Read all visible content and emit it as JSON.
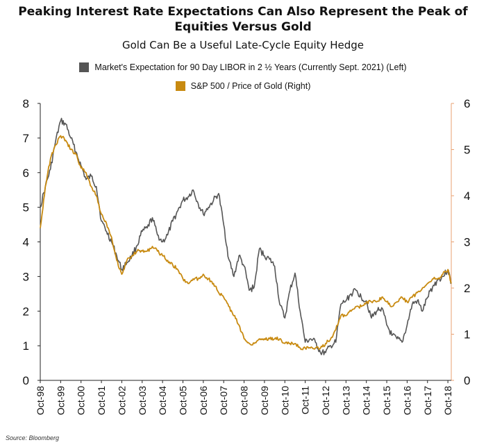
{
  "title_line1": "Peaking Interest Rate Expectations Can Also Represent the Peak of",
  "title_line2": "Equities Versus Gold",
  "subtitle": "Gold Can Be a Useful Late-Cycle Equity Hedge",
  "source": "Source: Bloomberg",
  "colors": {
    "libor": "#555555",
    "ratio": "#c88a10",
    "axis": "#222222"
  },
  "chart_data": {
    "type": "line",
    "title": "Peaking Interest Rate Expectations Can Also Represent the Peak of Equities Versus Gold",
    "subtitle": "Gold Can Be a Useful Late-Cycle Equity Hedge",
    "x_tick_labels": [
      "Oct-98",
      "Oct-99",
      "Oct-00",
      "Oct-01",
      "Oct-02",
      "Oct-03",
      "Oct-04",
      "Oct-05",
      "Oct-06",
      "Oct-07",
      "Oct-08",
      "Oct-09",
      "Oct-10",
      "Oct-11",
      "Oct-12",
      "Oct-13",
      "Oct-14",
      "Oct-15",
      "Oct-16",
      "Oct-17",
      "Oct-18"
    ],
    "xlim": [
      "1998-10",
      "2018-12"
    ],
    "left_axis": {
      "ylim": [
        0,
        8
      ],
      "ticks": [
        "0",
        "1",
        "2",
        "3",
        "4",
        "5",
        "6",
        "7",
        "8"
      ]
    },
    "right_axis": {
      "ylim": [
        0,
        6
      ],
      "ticks": [
        "0",
        "1",
        "2",
        "3",
        "4",
        "5",
        "6"
      ]
    },
    "legend_position": "top",
    "grid": false,
    "series": [
      {
        "name": "Market's Expectation for 90 Day LIBOR in 2 ½ Years (Currently Sept. 2021) (Left)",
        "axis": "left",
        "color": "#555555",
        "points": [
          [
            "1998-10",
            5.0
          ],
          [
            "1999-01",
            5.6
          ],
          [
            "1999-04",
            6.1
          ],
          [
            "1999-07",
            6.9
          ],
          [
            "1999-10",
            7.5
          ],
          [
            "2000-01",
            7.4
          ],
          [
            "2000-04",
            7.0
          ],
          [
            "2000-07",
            6.6
          ],
          [
            "2000-10",
            6.2
          ],
          [
            "2001-01",
            5.8
          ],
          [
            "2001-04",
            5.9
          ],
          [
            "2001-07",
            5.6
          ],
          [
            "2001-10",
            4.6
          ],
          [
            "2002-01",
            4.3
          ],
          [
            "2002-04",
            4.0
          ],
          [
            "2002-07",
            3.6
          ],
          [
            "2002-10",
            3.2
          ],
          [
            "2003-01",
            3.4
          ],
          [
            "2003-04",
            3.6
          ],
          [
            "2003-07",
            3.9
          ],
          [
            "2003-10",
            4.3
          ],
          [
            "2004-01",
            4.4
          ],
          [
            "2004-04",
            4.7
          ],
          [
            "2004-07",
            4.2
          ],
          [
            "2004-10",
            4.0
          ],
          [
            "2005-01",
            4.2
          ],
          [
            "2005-04",
            4.6
          ],
          [
            "2005-07",
            4.9
          ],
          [
            "2005-10",
            5.2
          ],
          [
            "2006-01",
            5.3
          ],
          [
            "2006-04",
            5.5
          ],
          [
            "2006-07",
            5.1
          ],
          [
            "2006-10",
            4.8
          ],
          [
            "2007-01",
            5.0
          ],
          [
            "2007-04",
            5.2
          ],
          [
            "2007-07",
            5.4
          ],
          [
            "2007-10",
            4.5
          ],
          [
            "2008-01",
            3.5
          ],
          [
            "2008-04",
            3.0
          ],
          [
            "2008-07",
            3.6
          ],
          [
            "2008-10",
            3.3
          ],
          [
            "2009-01",
            2.6
          ],
          [
            "2009-04",
            2.7
          ],
          [
            "2009-07",
            3.8
          ],
          [
            "2009-10",
            3.6
          ],
          [
            "2010-01",
            3.5
          ],
          [
            "2010-04",
            3.3
          ],
          [
            "2010-07",
            2.2
          ],
          [
            "2010-10",
            1.8
          ],
          [
            "2011-01",
            2.6
          ],
          [
            "2011-04",
            3.1
          ],
          [
            "2011-07",
            2.0
          ],
          [
            "2011-10",
            1.1
          ],
          [
            "2012-01",
            1.2
          ],
          [
            "2012-04",
            1.1
          ],
          [
            "2012-07",
            0.8
          ],
          [
            "2012-10",
            0.8
          ],
          [
            "2013-01",
            1.0
          ],
          [
            "2013-04",
            1.1
          ],
          [
            "2013-07",
            2.2
          ],
          [
            "2013-10",
            2.3
          ],
          [
            "2014-01",
            2.5
          ],
          [
            "2014-04",
            2.6
          ],
          [
            "2014-07",
            2.4
          ],
          [
            "2014-10",
            2.3
          ],
          [
            "2015-01",
            1.8
          ],
          [
            "2015-04",
            2.0
          ],
          [
            "2015-07",
            2.1
          ],
          [
            "2015-10",
            1.6
          ],
          [
            "2016-01",
            1.3
          ],
          [
            "2016-04",
            1.2
          ],
          [
            "2016-07",
            1.1
          ],
          [
            "2016-10",
            1.6
          ],
          [
            "2017-01",
            2.2
          ],
          [
            "2017-04",
            2.3
          ],
          [
            "2017-07",
            2.0
          ],
          [
            "2017-10",
            2.4
          ],
          [
            "2018-01",
            2.7
          ],
          [
            "2018-04",
            2.9
          ],
          [
            "2018-07",
            3.0
          ],
          [
            "2018-10",
            3.2
          ],
          [
            "2018-12",
            2.8
          ]
        ]
      },
      {
        "name": "S&P 500 / Price of Gold (Right)",
        "axis": "right",
        "color": "#c88a10",
        "points": [
          [
            "1998-10",
            3.3
          ],
          [
            "1999-01",
            4.2
          ],
          [
            "1999-04",
            4.8
          ],
          [
            "1999-07",
            5.1
          ],
          [
            "1999-10",
            5.3
          ],
          [
            "2000-01",
            5.2
          ],
          [
            "2000-04",
            5.0
          ],
          [
            "2000-07",
            4.9
          ],
          [
            "2000-10",
            4.6
          ],
          [
            "2001-01",
            4.5
          ],
          [
            "2001-04",
            4.2
          ],
          [
            "2001-07",
            4.0
          ],
          [
            "2001-10",
            3.6
          ],
          [
            "2002-01",
            3.4
          ],
          [
            "2002-04",
            3.1
          ],
          [
            "2002-07",
            2.6
          ],
          [
            "2002-10",
            2.3
          ],
          [
            "2003-01",
            2.6
          ],
          [
            "2003-04",
            2.7
          ],
          [
            "2003-07",
            2.8
          ],
          [
            "2003-10",
            2.8
          ],
          [
            "2004-01",
            2.8
          ],
          [
            "2004-04",
            2.9
          ],
          [
            "2004-07",
            2.8
          ],
          [
            "2004-10",
            2.7
          ],
          [
            "2005-01",
            2.6
          ],
          [
            "2005-04",
            2.5
          ],
          [
            "2005-07",
            2.4
          ],
          [
            "2005-10",
            2.2
          ],
          [
            "2006-01",
            2.1
          ],
          [
            "2006-04",
            2.2
          ],
          [
            "2006-07",
            2.2
          ],
          [
            "2006-10",
            2.3
          ],
          [
            "2007-01",
            2.2
          ],
          [
            "2007-04",
            2.1
          ],
          [
            "2007-07",
            1.9
          ],
          [
            "2007-10",
            1.8
          ],
          [
            "2008-01",
            1.6
          ],
          [
            "2008-04",
            1.4
          ],
          [
            "2008-07",
            1.2
          ],
          [
            "2008-10",
            0.9
          ],
          [
            "2009-01",
            0.8
          ],
          [
            "2009-04",
            0.8
          ],
          [
            "2009-07",
            0.9
          ],
          [
            "2009-10",
            0.9
          ],
          [
            "2010-01",
            0.9
          ],
          [
            "2010-04",
            0.9
          ],
          [
            "2010-07",
            0.9
          ],
          [
            "2010-10",
            0.8
          ],
          [
            "2011-01",
            0.8
          ],
          [
            "2011-04",
            0.8
          ],
          [
            "2011-07",
            0.7
          ],
          [
            "2011-10",
            0.7
          ],
          [
            "2012-01",
            0.7
          ],
          [
            "2012-04",
            0.7
          ],
          [
            "2012-07",
            0.7
          ],
          [
            "2012-10",
            0.8
          ],
          [
            "2013-01",
            0.9
          ],
          [
            "2013-04",
            1.1
          ],
          [
            "2013-07",
            1.4
          ],
          [
            "2013-10",
            1.4
          ],
          [
            "2014-01",
            1.5
          ],
          [
            "2014-04",
            1.6
          ],
          [
            "2014-07",
            1.6
          ],
          [
            "2014-10",
            1.7
          ],
          [
            "2015-01",
            1.7
          ],
          [
            "2015-04",
            1.7
          ],
          [
            "2015-07",
            1.8
          ],
          [
            "2015-10",
            1.7
          ],
          [
            "2016-01",
            1.6
          ],
          [
            "2016-04",
            1.7
          ],
          [
            "2016-07",
            1.8
          ],
          [
            "2016-10",
            1.7
          ],
          [
            "2017-01",
            1.8
          ],
          [
            "2017-04",
            1.9
          ],
          [
            "2017-07",
            2.0
          ],
          [
            "2017-10",
            2.1
          ],
          [
            "2018-01",
            2.2
          ],
          [
            "2018-04",
            2.2
          ],
          [
            "2018-07",
            2.3
          ],
          [
            "2018-10",
            2.4
          ],
          [
            "2018-12",
            2.1
          ]
        ]
      }
    ]
  }
}
